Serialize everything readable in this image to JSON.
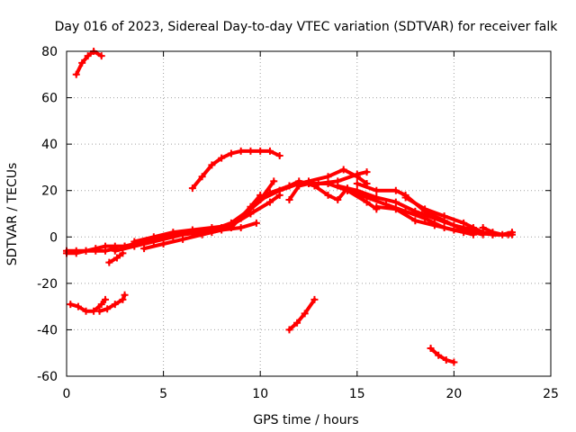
{
  "chart_data": {
    "type": "scatter",
    "title": "Day 016 of 2023, Sidereal Day-to-day VTEC variation (SDTVAR) for receiver falk",
    "xlabel": "GPS time / hours",
    "ylabel": "SDTVAR / TECUs",
    "xlim": [
      0,
      25
    ],
    "ylim": [
      -60,
      80
    ],
    "xticks": [
      0,
      5,
      10,
      15,
      20,
      25
    ],
    "yticks": [
      -60,
      -40,
      -20,
      0,
      20,
      40,
      60,
      80
    ],
    "xtick_labels": [
      "0",
      "5",
      "10",
      "15",
      "20",
      "25"
    ],
    "ytick_labels": [
      "-60",
      "-40",
      "-20",
      "0",
      "20",
      "40",
      "60",
      "80"
    ],
    "grid": true,
    "marker_color": "#ff0000",
    "series": [
      {
        "name": "arc-top-left",
        "points": [
          [
            0.5,
            70
          ],
          [
            0.8,
            75
          ],
          [
            1.1,
            78
          ],
          [
            1.4,
            80
          ],
          [
            1.8,
            78
          ]
        ]
      },
      {
        "name": "arc-high",
        "points": [
          [
            6.5,
            21
          ],
          [
            7.0,
            26
          ],
          [
            7.5,
            31
          ],
          [
            8.0,
            34
          ],
          [
            8.5,
            36
          ],
          [
            9.0,
            37
          ],
          [
            9.5,
            37
          ],
          [
            10.0,
            37
          ],
          [
            10.5,
            37
          ],
          [
            11.0,
            35
          ]
        ]
      },
      {
        "name": "band-start",
        "points": [
          [
            0,
            -6
          ],
          [
            0.5,
            -6
          ],
          [
            1.0,
            -6
          ],
          [
            1.5,
            -5
          ],
          [
            2.0,
            -4
          ],
          [
            2.5,
            -4
          ],
          [
            3.0,
            -4
          ]
        ]
      },
      {
        "name": "band-start-2",
        "points": [
          [
            0,
            -7
          ],
          [
            0.5,
            -7
          ],
          [
            1.0,
            -6
          ],
          [
            1.5,
            -6
          ],
          [
            2.0,
            -6
          ],
          [
            2.5,
            -5
          ]
        ]
      },
      {
        "name": "band-mid-a",
        "points": [
          [
            2.5,
            -6
          ],
          [
            3.5,
            -4
          ],
          [
            4.5,
            -2
          ],
          [
            5.5,
            0
          ],
          [
            6.5,
            2
          ],
          [
            7.5,
            3
          ],
          [
            8.5,
            6
          ],
          [
            9.5,
            12
          ],
          [
            10.5,
            19
          ]
        ]
      },
      {
        "name": "band-mid-b",
        "points": [
          [
            3.0,
            -4
          ],
          [
            4.0,
            -2
          ],
          [
            5.0,
            0
          ],
          [
            6.0,
            1
          ],
          [
            7.0,
            2
          ],
          [
            8.0,
            4
          ],
          [
            9.0,
            8
          ],
          [
            10.0,
            16
          ],
          [
            10.7,
            24
          ]
        ]
      },
      {
        "name": "band-mid-c",
        "points": [
          [
            3.5,
            -2
          ],
          [
            4.5,
            0
          ],
          [
            5.5,
            2
          ],
          [
            6.5,
            3
          ],
          [
            7.5,
            4
          ],
          [
            8.5,
            5
          ],
          [
            9.5,
            10
          ],
          [
            10.5,
            15
          ],
          [
            11.0,
            18
          ]
        ]
      },
      {
        "name": "band-mid-d",
        "points": [
          [
            4.0,
            -5
          ],
          [
            5.0,
            -3
          ],
          [
            6.0,
            -1
          ],
          [
            7.0,
            1
          ],
          [
            8.0,
            3
          ],
          [
            9.0,
            4
          ],
          [
            9.8,
            6
          ]
        ]
      },
      {
        "name": "band-mid-e",
        "points": [
          [
            4.5,
            -1
          ],
          [
            5.5,
            1
          ],
          [
            6.5,
            2
          ],
          [
            7.5,
            2
          ],
          [
            8.5,
            4
          ],
          [
            9.5,
            13
          ],
          [
            10.0,
            18
          ]
        ]
      },
      {
        "name": "band-peak-a",
        "points": [
          [
            10.0,
            16
          ],
          [
            11.0,
            20
          ],
          [
            12.0,
            23
          ],
          [
            13.0,
            23
          ],
          [
            14.0,
            24
          ],
          [
            15.0,
            27
          ],
          [
            15.5,
            28
          ]
        ]
      },
      {
        "name": "band-peak-b",
        "points": [
          [
            10.5,
            19
          ],
          [
            11.5,
            22
          ],
          [
            12.5,
            24
          ],
          [
            13.5,
            26
          ],
          [
            14.3,
            29
          ],
          [
            15.0,
            26
          ],
          [
            15.5,
            23
          ]
        ]
      },
      {
        "name": "band-peak-c",
        "points": [
          [
            11.0,
            20
          ],
          [
            12.0,
            24
          ],
          [
            12.8,
            22
          ],
          [
            13.5,
            18
          ],
          [
            14.0,
            16
          ],
          [
            14.5,
            21
          ]
        ]
      },
      {
        "name": "band-peak-d",
        "points": [
          [
            11.5,
            16
          ],
          [
            12.0,
            22
          ],
          [
            12.5,
            23
          ],
          [
            13.5,
            23
          ],
          [
            14.5,
            20
          ],
          [
            15.5,
            15
          ],
          [
            16.0,
            12
          ]
        ]
      },
      {
        "name": "band-decline-a",
        "points": [
          [
            14.0,
            22
          ],
          [
            15.0,
            20
          ],
          [
            16.0,
            17
          ],
          [
            17.0,
            15
          ],
          [
            18.0,
            11
          ],
          [
            19.0,
            8
          ],
          [
            20.0,
            5
          ],
          [
            21.0,
            3
          ],
          [
            21.5,
            2
          ]
        ]
      },
      {
        "name": "band-decline-b",
        "points": [
          [
            14.5,
            20
          ],
          [
            15.5,
            17
          ],
          [
            16.5,
            14
          ],
          [
            17.5,
            11
          ],
          [
            18.5,
            8
          ],
          [
            19.5,
            4
          ],
          [
            20.5,
            2
          ],
          [
            21.0,
            1
          ]
        ]
      },
      {
        "name": "band-decline-c",
        "points": [
          [
            15.0,
            23
          ],
          [
            16.0,
            20
          ],
          [
            17.0,
            20
          ],
          [
            17.5,
            18
          ],
          [
            18.5,
            11
          ],
          [
            19.5,
            7
          ],
          [
            20.5,
            3
          ],
          [
            21.5,
            1
          ]
        ]
      },
      {
        "name": "band-decline-d",
        "points": [
          [
            16.0,
            13
          ],
          [
            17.0,
            12
          ],
          [
            18.0,
            7
          ],
          [
            19.0,
            5
          ],
          [
            20.0,
            3
          ],
          [
            21.0,
            2
          ],
          [
            22.0,
            1
          ],
          [
            22.8,
            1
          ]
        ]
      },
      {
        "name": "band-decline-e",
        "points": [
          [
            17.5,
            17
          ],
          [
            18.5,
            12
          ],
          [
            19.5,
            9
          ],
          [
            20.5,
            6
          ],
          [
            21.0,
            4
          ],
          [
            21.5,
            2
          ],
          [
            22.0,
            1
          ],
          [
            23.0,
            1
          ]
        ]
      },
      {
        "name": "band-tail",
        "points": [
          [
            21.5,
            4
          ],
          [
            22.0,
            2
          ],
          [
            22.5,
            1
          ],
          [
            23.0,
            2
          ]
        ]
      },
      {
        "name": "arc-neg-left-a",
        "points": [
          [
            0.2,
            -29
          ],
          [
            0.6,
            -30
          ],
          [
            1.0,
            -32
          ],
          [
            1.4,
            -32
          ],
          [
            1.8,
            -29
          ],
          [
            2.0,
            -27
          ]
        ]
      },
      {
        "name": "arc-neg-left-b",
        "points": [
          [
            1.7,
            -32
          ],
          [
            2.1,
            -31
          ],
          [
            2.5,
            -29
          ],
          [
            2.9,
            -27
          ],
          [
            3.0,
            -25
          ]
        ]
      },
      {
        "name": "arc-neg-left-c",
        "points": [
          [
            2.2,
            -11
          ],
          [
            2.6,
            -9
          ],
          [
            2.9,
            -7
          ]
        ]
      },
      {
        "name": "arc-neg-mid",
        "points": [
          [
            11.5,
            -40
          ],
          [
            11.9,
            -37
          ],
          [
            12.3,
            -33
          ],
          [
            12.8,
            -27
          ]
        ]
      },
      {
        "name": "arc-neg-right",
        "points": [
          [
            18.8,
            -48
          ],
          [
            19.2,
            -51
          ],
          [
            19.6,
            -53
          ],
          [
            20.0,
            -54
          ]
        ]
      }
    ]
  }
}
